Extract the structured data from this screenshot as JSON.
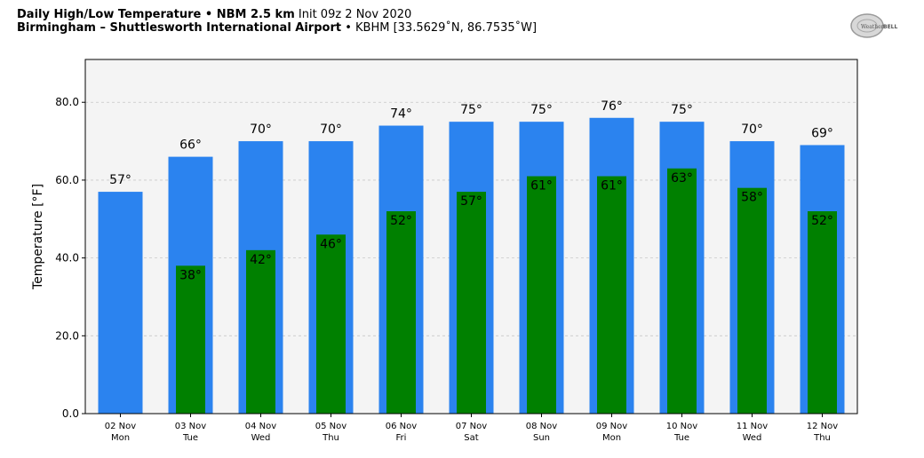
{
  "header": {
    "title_bold": "Daily High/Low Temperature • NBM 2.5 km",
    "title_normal": " Init 09z 2 Nov 2020",
    "location_bold": "Birmingham – Shuttlesworth International Airport",
    "location_normal": " • KBHM [33.5629˚N, 86.7535˚W]"
  },
  "logo": {
    "text_prefix": "Weather",
    "text_suffix": "BELL"
  },
  "colors": {
    "high": "#2b83ef",
    "low": "#008000",
    "plot_bg": "#f4f4f4"
  },
  "chart_data": {
    "type": "bar",
    "categories": [
      "02 Nov",
      "03 Nov",
      "04 Nov",
      "05 Nov",
      "06 Nov",
      "07 Nov",
      "08 Nov",
      "09 Nov",
      "10 Nov",
      "11 Nov",
      "12 Nov"
    ],
    "weekdays": [
      "Mon",
      "Tue",
      "Wed",
      "Thu",
      "Fri",
      "Sat",
      "Sun",
      "Mon",
      "Tue",
      "Wed",
      "Thu"
    ],
    "series": [
      {
        "values": [
          57,
          66,
          70,
          70,
          74,
          75,
          75,
          76,
          75,
          70,
          69
        ]
      },
      {
        "values": [
          null,
          38,
          42,
          46,
          52,
          57,
          61,
          61,
          63,
          58,
          52
        ]
      }
    ],
    "high_labels": [
      "57°",
      "66°",
      "70°",
      "70°",
      "74°",
      "75°",
      "75°",
      "76°",
      "75°",
      "70°",
      "69°"
    ],
    "low_labels": [
      "",
      "38°",
      "42°",
      "46°",
      "52°",
      "57°",
      "61°",
      "61°",
      "63°",
      "58°",
      "52°"
    ],
    "ylabel": "Temperature [°F]",
    "xlabel": "",
    "ylim": [
      0,
      91
    ],
    "yticks": [
      0,
      20,
      40,
      60,
      80
    ],
    "ytick_labels": [
      "0.0",
      "20.0",
      "40.0",
      "60.0",
      "80.0"
    ],
    "grid": true
  }
}
